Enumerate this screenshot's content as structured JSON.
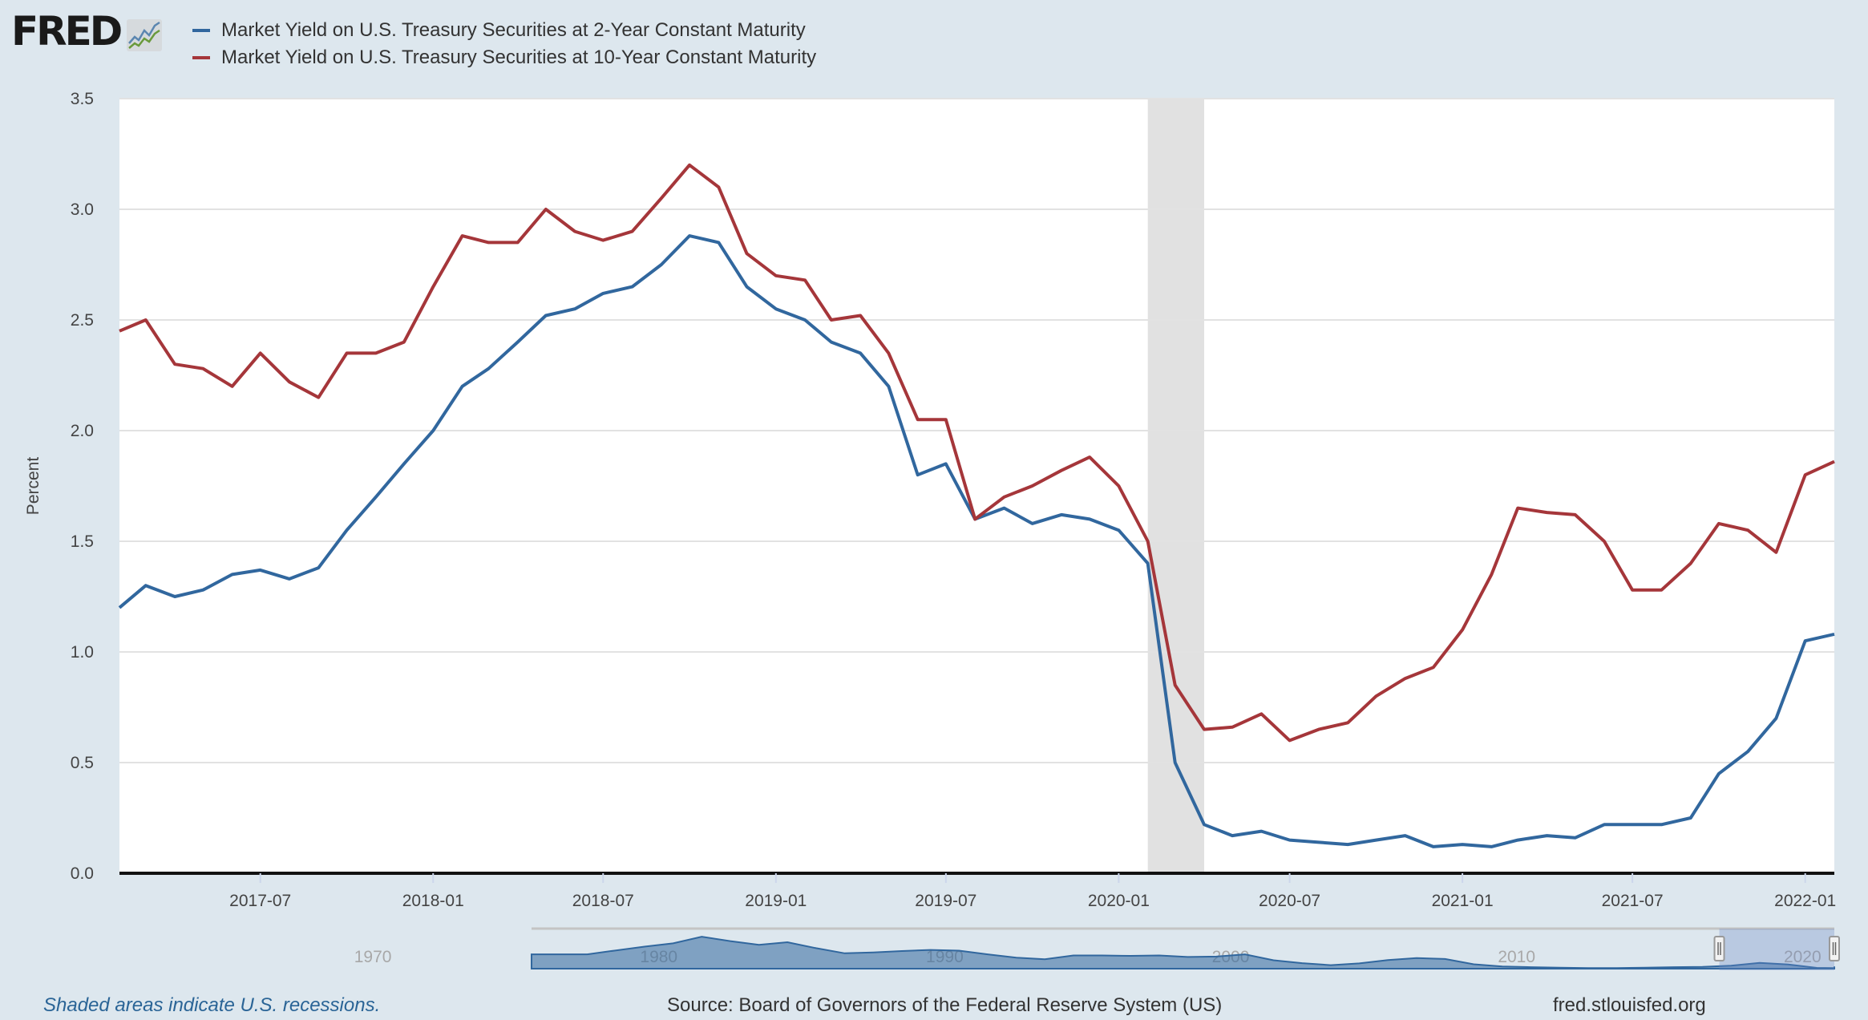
{
  "logo": {
    "text": "FRED",
    "icon": "chart-line-icon"
  },
  "legend": [
    {
      "label": "Market Yield on U.S. Treasury Securities at 2-Year Constant Maturity",
      "color": "#31679e"
    },
    {
      "label": "Market Yield on U.S. Treasury Securities at 10-Year Constant Maturity",
      "color": "#a5363a"
    }
  ],
  "footer": {
    "recession_note": "Shaded areas indicate U.S. recessions.",
    "source": "Source: Board of Governors of the Federal Reserve System (US)",
    "url": "fred.stlouisfed.org"
  },
  "chart_data": {
    "type": "line",
    "title": "",
    "xlabel": "",
    "ylabel": "Percent",
    "xlim": [
      "2017-02-01",
      "2022-02-01"
    ],
    "ylim": [
      0,
      3.5
    ],
    "yticks": [
      "0.0",
      "0.5",
      "1.0",
      "1.5",
      "2.0",
      "2.5",
      "3.0",
      "3.5"
    ],
    "xticks": [
      "2017-07",
      "2018-01",
      "2018-07",
      "2019-01",
      "2019-07",
      "2020-01",
      "2020-07",
      "2021-01",
      "2021-07",
      "2022-01"
    ],
    "grid": true,
    "legend_position": "top",
    "recession_shading": [
      {
        "start": "2020-02-01",
        "end": "2020-04-01",
        "color": "#e1e1e1"
      }
    ],
    "x": [
      "2017-02-01",
      "2017-03-01",
      "2017-04-01",
      "2017-05-01",
      "2017-06-01",
      "2017-07-01",
      "2017-08-01",
      "2017-09-01",
      "2017-10-01",
      "2017-11-01",
      "2017-12-01",
      "2018-01-01",
      "2018-02-01",
      "2018-03-01",
      "2018-04-01",
      "2018-05-01",
      "2018-06-01",
      "2018-07-01",
      "2018-08-01",
      "2018-09-01",
      "2018-10-01",
      "2018-11-01",
      "2018-12-01",
      "2019-01-01",
      "2019-02-01",
      "2019-03-01",
      "2019-04-01",
      "2019-05-01",
      "2019-06-01",
      "2019-07-01",
      "2019-08-01",
      "2019-09-01",
      "2019-10-01",
      "2019-11-01",
      "2019-12-01",
      "2020-01-01",
      "2020-02-01",
      "2020-03-01",
      "2020-04-01",
      "2020-05-01",
      "2020-06-01",
      "2020-07-01",
      "2020-08-01",
      "2020-09-01",
      "2020-10-01",
      "2020-11-01",
      "2020-12-01",
      "2021-01-01",
      "2021-02-01",
      "2021-03-01",
      "2021-04-01",
      "2021-05-01",
      "2021-06-01",
      "2021-07-01",
      "2021-08-01",
      "2021-09-01",
      "2021-10-01",
      "2021-11-01",
      "2021-12-01",
      "2022-01-01",
      "2022-02-01"
    ],
    "series": [
      {
        "name": "Market Yield on U.S. Treasury Securities at 2-Year Constant Maturity",
        "color": "#31679e",
        "values": [
          1.2,
          1.3,
          1.25,
          1.28,
          1.35,
          1.37,
          1.33,
          1.38,
          1.55,
          1.7,
          1.85,
          2.0,
          2.2,
          2.28,
          2.4,
          2.52,
          2.55,
          2.62,
          2.65,
          2.75,
          2.88,
          2.85,
          2.65,
          2.55,
          2.5,
          2.4,
          2.35,
          2.2,
          1.8,
          1.85,
          1.6,
          1.65,
          1.58,
          1.62,
          1.6,
          1.55,
          1.4,
          0.5,
          0.22,
          0.17,
          0.19,
          0.15,
          0.14,
          0.13,
          0.15,
          0.17,
          0.12,
          0.13,
          0.12,
          0.15,
          0.17,
          0.16,
          0.22,
          0.22,
          0.22,
          0.25,
          0.45,
          0.55,
          0.7,
          1.05,
          1.08
        ]
      },
      {
        "name": "Market Yield on U.S. Treasury Securities at 10-Year Constant Maturity",
        "color": "#a5363a",
        "values": [
          2.45,
          2.5,
          2.3,
          2.28,
          2.2,
          2.35,
          2.22,
          2.15,
          2.35,
          2.35,
          2.4,
          2.65,
          2.88,
          2.85,
          2.85,
          3.0,
          2.9,
          2.86,
          2.9,
          3.05,
          3.2,
          3.1,
          2.8,
          2.7,
          2.68,
          2.5,
          2.52,
          2.35,
          2.05,
          2.05,
          1.6,
          1.7,
          1.75,
          1.82,
          1.88,
          1.75,
          1.5,
          0.85,
          0.65,
          0.66,
          0.72,
          0.6,
          0.65,
          0.68,
          0.8,
          0.88,
          0.93,
          1.1,
          1.35,
          1.65,
          1.63,
          1.62,
          1.5,
          1.28,
          1.28,
          1.4,
          1.58,
          1.55,
          1.45,
          1.8,
          1.86
        ]
      }
    ],
    "navigator": {
      "xticks": [
        "1970",
        "1980",
        "1990",
        "2000",
        "2010",
        "2020"
      ],
      "selected_range": [
        "2017-02-01",
        "2022-02-01"
      ],
      "years": [
        1976,
        1977,
        1978,
        1979,
        1980,
        1981,
        1982,
        1983,
        1984,
        1985,
        1986,
        1987,
        1988,
        1989,
        1990,
        1991,
        1992,
        1993,
        1994,
        1995,
        1996,
        1997,
        1998,
        1999,
        2000,
        2001,
        2002,
        2003,
        2004,
        2005,
        2006,
        2007,
        2008,
        2009,
        2010,
        2011,
        2012,
        2013,
        2014,
        2015,
        2016,
        2017,
        2018,
        2019,
        2020,
        2021,
        2022
      ],
      "values": [
        6.5,
        6.5,
        8.3,
        10.0,
        11.5,
        14.5,
        12.5,
        10.8,
        12.0,
        9.3,
        7.0,
        7.4,
        8.0,
        8.5,
        8.2,
        6.5,
        5.0,
        4.3,
        6.0,
        6.0,
        5.8,
        6.0,
        5.3,
        5.5,
        6.5,
        3.8,
        2.5,
        1.6,
        2.4,
        3.9,
        4.8,
        4.4,
        2.0,
        1.0,
        0.7,
        0.45,
        0.28,
        0.3,
        0.45,
        0.7,
        0.85,
        1.4,
        2.6,
        1.9,
        0.35,
        0.25,
        1.0
      ]
    }
  }
}
